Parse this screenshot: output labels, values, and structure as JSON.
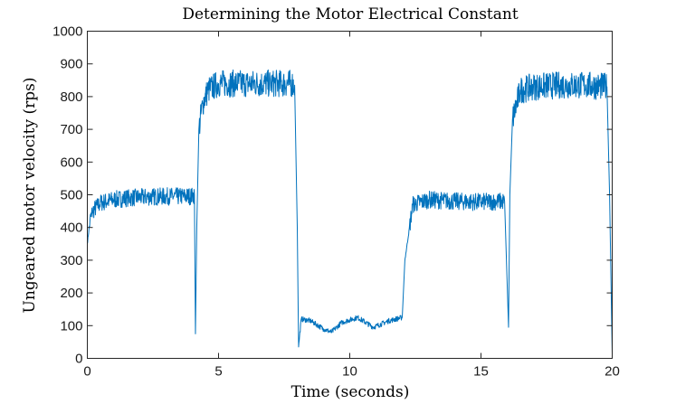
{
  "chart_data": {
    "type": "line",
    "title": "Determining the Motor Electrical Constant",
    "xlabel": "Time (seconds)",
    "ylabel": "Ungeared motor velocity (rps)",
    "xlim": [
      0,
      20
    ],
    "ylim": [
      0,
      1000
    ],
    "xticks": [
      0,
      5,
      10,
      15,
      20
    ],
    "xtick_labels": [
      "0",
      "5",
      "10",
      "15",
      "20"
    ],
    "yticks": [
      0,
      100,
      200,
      300,
      400,
      500,
      600,
      700,
      800,
      900,
      1000
    ],
    "ytick_labels": [
      "0",
      "100",
      "200",
      "300",
      "400",
      "500",
      "600",
      "700",
      "800",
      "900",
      "1000"
    ],
    "grid": false,
    "line_color": "#0072BD",
    "series": [
      {
        "x": [
          0,
          0.1,
          0.2,
          0.5,
          1.0,
          1.5,
          2.0,
          2.5,
          3.0,
          3.5,
          4.0,
          4.08,
          4.12,
          4.17,
          4.25,
          4.4,
          4.6,
          5.0,
          6.0,
          7.0,
          7.8,
          7.9,
          8.0,
          8.05,
          8.15,
          8.5,
          9.0,
          9.3,
          9.7,
          10.3,
          10.9,
          11.5,
          12.0,
          12.1,
          12.4,
          13.0,
          14.0,
          15.0,
          15.9,
          16.05,
          16.1,
          16.2,
          16.5,
          17.0,
          18.0,
          19.0,
          19.8,
          19.9,
          20.0
        ],
        "y": [
          350,
          420,
          450,
          475,
          485,
          490,
          492,
          494,
          495,
          495,
          496,
          500,
          75,
          400,
          700,
          780,
          820,
          840,
          840,
          840,
          840,
          835,
          400,
          35,
          120,
          115,
          90,
          80,
          110,
          125,
          95,
          115,
          125,
          300,
          470,
          485,
          480,
          478,
          480,
          95,
          500,
          730,
          820,
          830,
          835,
          835,
          830,
          500,
          15
        ]
      }
    ]
  }
}
